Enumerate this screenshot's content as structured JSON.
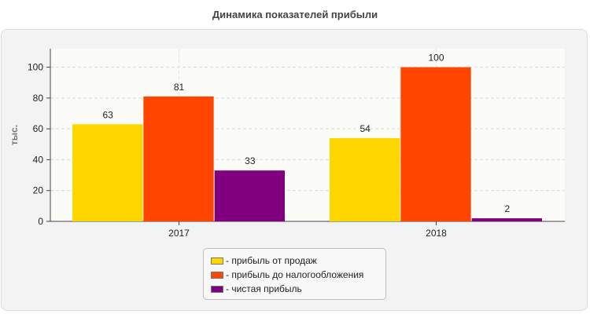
{
  "chart_data": {
    "type": "bar",
    "title": "Динамика показателей прибыли",
    "ylabel": "тыс.",
    "xlabel": "",
    "categories": [
      "2017",
      "2018"
    ],
    "ylim": [
      0,
      112
    ],
    "yticks": [
      0,
      20,
      40,
      60,
      80,
      100
    ],
    "grid": true,
    "legend_position": "bottom",
    "series": [
      {
        "name": "прибыль от продаж",
        "values": [
          63,
          54
        ],
        "color": "#FFD700"
      },
      {
        "name": "прибыль до налогообложения",
        "values": [
          81,
          100
        ],
        "color": "#FF4500"
      },
      {
        "name": "чистая прибыль",
        "values": [
          33,
          2
        ],
        "color": "#800080"
      }
    ],
    "legend_prefix": "- "
  }
}
